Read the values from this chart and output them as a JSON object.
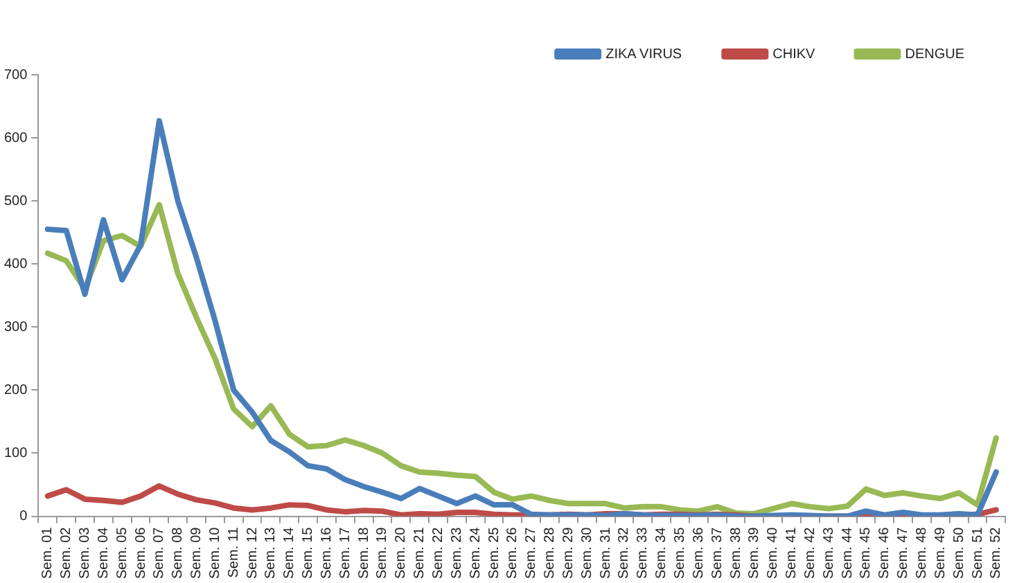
{
  "chart_data": {
    "type": "line",
    "categories": [
      "Sem. 01",
      "Sem. 02",
      "Sem. 03",
      "Sem. 04",
      "Sem. 05",
      "Sem. 06",
      "Sem. 07",
      "Sem. 08",
      "Sem. 09",
      "Sem. 10",
      "Sem. 11",
      "Sem. 12",
      "Sem. 13",
      "Sem. 14",
      "Sem. 15",
      "Sem. 16",
      "Sem. 17",
      "Sem. 18",
      "Sem. 19",
      "Sem. 20",
      "Sem. 21",
      "Sem. 22",
      "Sem. 23",
      "Sem. 24",
      "Sem. 25",
      "Sem. 26",
      "Sem. 27",
      "Sem. 28",
      "Sem. 29",
      "Sem. 30",
      "Sem. 31",
      "Sem. 32",
      "Sem. 33",
      "Sem. 34",
      "Sem. 35",
      "Sem. 36",
      "Sem. 37",
      "Sem. 38",
      "Sem. 39",
      "Sem. 40",
      "Sem. 41",
      "Sem. 42",
      "Sem. 43",
      "Sem. 44",
      "Sem. 45",
      "Sem. 46",
      "Sem. 47",
      "Sem. 48",
      "Sem. 49",
      "Sem. 50",
      "Sem. 51",
      "Sem. 52"
    ],
    "series": [
      {
        "name": "ZIKA VIRUS",
        "color": "#4a7ebb",
        "values": [
          455,
          453,
          352,
          470,
          375,
          430,
          627,
          500,
          410,
          310,
          200,
          165,
          120,
          102,
          80,
          75,
          58,
          47,
          38,
          28,
          44,
          32,
          20,
          32,
          18,
          18,
          3,
          2,
          2,
          2,
          1,
          4,
          2,
          1,
          1,
          1,
          2,
          0,
          0,
          1,
          2,
          1,
          0,
          0,
          8,
          2,
          6,
          2,
          2,
          4,
          2,
          70
        ]
      },
      {
        "name": "CHIKV",
        "color": "#be4b48",
        "values": [
          32,
          42,
          27,
          25,
          22,
          32,
          48,
          35,
          26,
          21,
          13,
          10,
          13,
          18,
          17,
          10,
          7,
          9,
          8,
          2,
          4,
          3,
          6,
          6,
          3,
          2,
          2,
          2,
          3,
          2,
          4,
          4,
          2,
          3,
          3,
          2,
          3,
          2,
          0,
          0,
          0,
          0,
          0,
          0,
          2,
          1,
          4,
          1,
          1,
          2,
          3,
          10
        ]
      },
      {
        "name": "DENGUE",
        "color": "#98b954",
        "values": [
          417,
          405,
          360,
          437,
          445,
          428,
          494,
          385,
          315,
          250,
          170,
          142,
          175,
          130,
          110,
          112,
          121,
          112,
          100,
          80,
          70,
          68,
          65,
          63,
          38,
          27,
          32,
          25,
          20,
          20,
          20,
          13,
          15,
          15,
          10,
          8,
          15,
          5,
          4,
          12,
          20,
          15,
          12,
          16,
          43,
          33,
          37,
          32,
          28,
          37,
          18,
          124
        ]
      }
    ],
    "ylim": [
      0,
      700
    ],
    "yticks": [
      0,
      100,
      200,
      300,
      400,
      500,
      600,
      700
    ],
    "grid": false,
    "legend": "top right",
    "marker": "none",
    "line_style": "solid"
  }
}
